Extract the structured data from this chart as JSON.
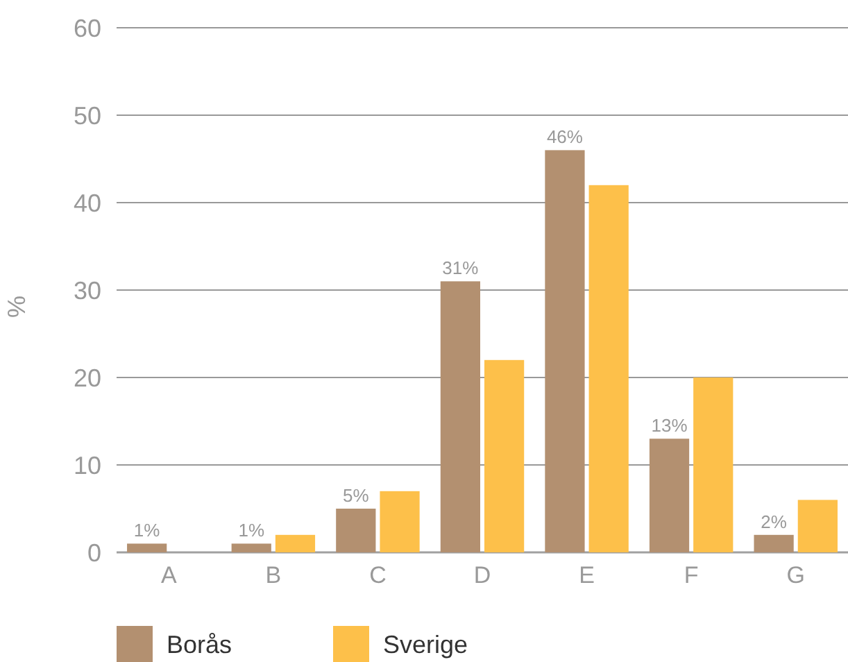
{
  "chart_data": {
    "type": "bar",
    "ylabel": "%",
    "categories": [
      "A",
      "B",
      "C",
      "D",
      "E",
      "F",
      "G"
    ],
    "series": [
      {
        "name": "Borås",
        "color": "#b39070",
        "values": [
          1,
          1,
          5,
          31,
          46,
          13,
          2
        ],
        "value_labels": [
          "1%",
          "1%",
          "5%",
          "31%",
          "46%",
          "13%",
          "2%"
        ]
      },
      {
        "name": "Sverige",
        "color": "#fdc04a",
        "values": [
          0,
          2,
          7,
          22,
          42,
          20,
          6
        ]
      }
    ],
    "ylim": [
      0,
      60
    ],
    "yticks": [
      0,
      10,
      20,
      30,
      40,
      50,
      60
    ],
    "grid": "y",
    "legend": "bottom left"
  }
}
